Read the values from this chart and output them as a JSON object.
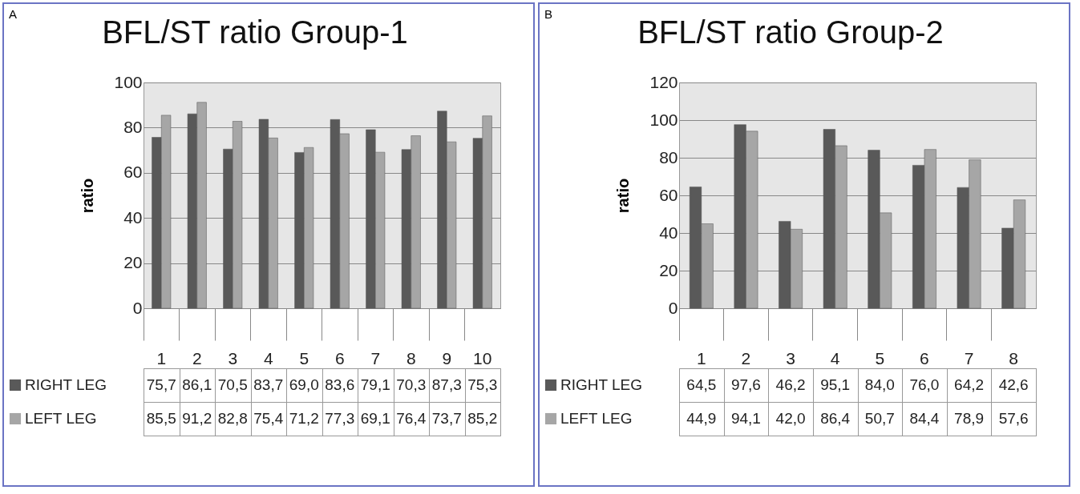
{
  "chart_data": [
    {
      "type": "bar",
      "title": "BFL/ST ratio Group-1",
      "ylabel": "ratio",
      "annotations": [
        "A"
      ],
      "categories": [
        "1",
        "2",
        "3",
        "4",
        "5",
        "6",
        "7",
        "8",
        "9",
        "10"
      ],
      "ylim": [
        0,
        100
      ],
      "yticks": [
        0,
        20,
        40,
        60,
        80,
        100
      ],
      "grid": "y",
      "legend": "bottom left",
      "series": [
        {
          "name": "RIGHT LEG",
          "color": "#595959",
          "values": [
            75.7,
            86.1,
            70.5,
            83.7,
            69.0,
            83.6,
            79.1,
            70.3,
            87.3,
            75.3
          ],
          "value_labels": [
            "75,7",
            "86,1",
            "70,5",
            "83,7",
            "69,0",
            "83,6",
            "79,1",
            "70,3",
            "87,3",
            "75,3"
          ]
        },
        {
          "name": "LEFT LEG",
          "color": "#a6a6a6",
          "values": [
            85.5,
            91.2,
            82.8,
            75.4,
            71.2,
            77.3,
            69.1,
            76.4,
            73.7,
            85.2
          ],
          "value_labels": [
            "85,5",
            "91,2",
            "82,8",
            "75,4",
            "71,2",
            "77,3",
            "69,1",
            "76,4",
            "73,7",
            "85,2"
          ]
        }
      ]
    },
    {
      "type": "bar",
      "title": "BFL/ST ratio Group-2",
      "ylabel": "ratio",
      "annotations": [
        "B"
      ],
      "categories": [
        "1",
        "2",
        "3",
        "4",
        "5",
        "6",
        "7",
        "8"
      ],
      "ylim": [
        0,
        120
      ],
      "yticks": [
        0,
        20,
        40,
        60,
        80,
        100,
        120
      ],
      "grid": "y",
      "legend": "bottom left",
      "series": [
        {
          "name": "RIGHT LEG",
          "color": "#595959",
          "values": [
            64.5,
            97.6,
            46.2,
            95.1,
            84.0,
            76.0,
            64.2,
            42.6
          ],
          "value_labels": [
            "64,5",
            "97,6",
            "46,2",
            "95,1",
            "84,0",
            "76,0",
            "64,2",
            "42,6"
          ]
        },
        {
          "name": "LEFT LEG",
          "color": "#a6a6a6",
          "values": [
            44.9,
            94.1,
            42.0,
            86.4,
            50.7,
            84.4,
            78.9,
            57.6
          ],
          "value_labels": [
            "44,9",
            "94,1",
            "42,0",
            "86,4",
            "50,7",
            "84,4",
            "78,9",
            "57,6"
          ]
        }
      ]
    }
  ]
}
